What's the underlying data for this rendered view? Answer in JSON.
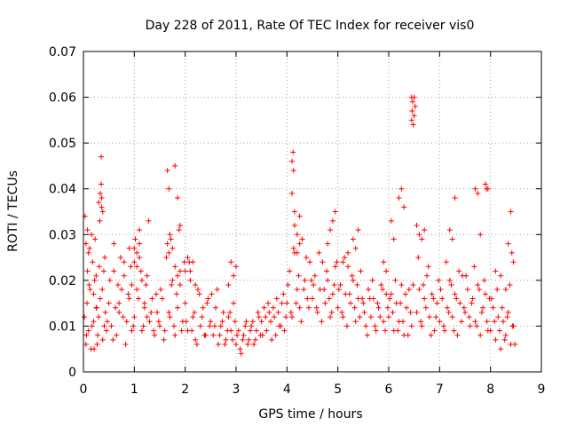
{
  "chart_data": {
    "type": "scatter",
    "title": "Day 228 of 2011, Rate Of TEC Index for receiver vis0",
    "xlabel": "GPS time / hours",
    "ylabel": "ROTI / TECUs",
    "xlim": [
      0,
      9
    ],
    "ylim": [
      0,
      0.07
    ],
    "xticks": [
      "0",
      "1",
      "2",
      "3",
      "4",
      "5",
      "6",
      "7",
      "8",
      "9"
    ],
    "yticks": [
      "0",
      "0.01",
      "0.02",
      "0.03",
      "0.04",
      "0.05",
      "0.06",
      "0.07"
    ],
    "grid": true,
    "marker": "+",
    "color": "#ff0000",
    "series": [
      {
        "x": [
          0.02,
          0.05,
          0.08,
          0.1,
          0.13,
          0.15,
          0.18,
          0.2,
          0.23,
          0.25,
          0.28,
          0.3,
          0.33,
          0.35,
          0.38,
          0.4,
          0.43,
          0.45,
          0.03,
          0.07,
          0.12,
          0.17,
          0.22,
          0.27,
          0.32,
          0.37,
          0.42,
          0.47,
          0.06,
          0.11,
          0.16,
          0.21,
          0.26,
          0.31,
          0.36,
          0.41,
          0.35,
          0.36,
          0.38,
          0.33,
          0.05,
          0.08,
          0.1,
          0.2,
          0.25,
          0.3,
          0.5,
          0.55,
          0.6,
          0.65,
          0.7,
          0.75,
          0.8,
          0.85,
          0.9,
          0.95,
          0.52,
          0.58,
          0.63,
          0.68,
          0.73,
          0.78,
          0.83,
          0.88,
          0.93,
          0.98,
          0.6,
          0.7,
          0.8,
          0.9,
          1.0,
          1.05,
          1.1,
          1.15,
          1.2,
          1.25,
          1.3,
          1.35,
          1.4,
          1.45,
          1.02,
          1.08,
          1.13,
          1.18,
          1.23,
          1.28,
          1.33,
          1.38,
          1.43,
          1.48,
          1.0,
          1.05,
          1.1,
          1.15,
          0.95,
          1.0,
          1.05,
          1.1,
          1.2,
          1.25,
          1.5,
          1.55,
          1.6,
          1.65,
          1.7,
          1.75,
          1.8,
          1.85,
          1.9,
          1.95,
          1.52,
          1.58,
          1.63,
          1.68,
          1.73,
          1.78,
          1.83,
          1.88,
          1.93,
          1.98,
          1.65,
          1.68,
          1.72,
          1.75,
          1.8,
          1.85,
          1.9,
          1.68,
          1.7,
          1.8,
          1.85,
          1.9,
          2.0,
          2.05,
          2.1,
          2.15,
          2.2,
          2.25,
          2.3,
          2.35,
          2.4,
          2.45,
          2.02,
          2.08,
          2.13,
          2.18,
          2.23,
          2.28,
          2.33,
          2.38,
          2.43,
          2.48,
          2.0,
          2.05,
          2.1,
          2.15,
          2.2,
          2.5,
          2.55,
          2.6,
          2.65,
          2.7,
          2.75,
          2.8,
          2.85,
          2.9,
          2.95,
          2.52,
          2.58,
          2.63,
          2.68,
          2.73,
          2.78,
          2.83,
          2.88,
          2.93,
          2.98,
          2.9,
          2.95,
          3.0,
          2.85,
          3.0,
          3.05,
          3.1,
          3.15,
          3.2,
          3.25,
          3.3,
          3.35,
          3.4,
          3.45,
          3.02,
          3.08,
          3.13,
          3.18,
          3.23,
          3.28,
          3.33,
          3.38,
          3.43,
          3.48,
          3.5,
          3.55,
          3.6,
          3.65,
          3.7,
          3.75,
          3.8,
          3.85,
          3.9,
          3.95,
          3.52,
          3.58,
          3.63,
          3.68,
          3.73,
          3.78,
          3.83,
          3.88,
          3.93,
          3.98,
          4.0,
          4.05,
          4.1,
          4.15,
          4.2,
          4.25,
          4.3,
          4.35,
          4.4,
          4.45,
          4.02,
          4.08,
          4.13,
          4.18,
          4.23,
          4.28,
          4.33,
          4.38,
          4.43,
          4.48,
          4.1,
          4.12,
          4.13,
          4.15,
          4.2,
          4.25,
          4.3,
          4.1,
          4.15,
          4.2,
          4.25,
          4.5,
          4.55,
          4.6,
          4.65,
          4.7,
          4.75,
          4.8,
          4.85,
          4.9,
          4.95,
          4.52,
          4.58,
          4.63,
          4.68,
          4.73,
          4.78,
          4.83,
          4.88,
          4.93,
          4.98,
          4.8,
          4.85,
          4.9,
          4.95,
          5.0,
          5.05,
          5.1,
          5.15,
          5.2,
          5.25,
          5.3,
          5.35,
          5.4,
          5.45,
          5.02,
          5.08,
          5.13,
          5.18,
          5.23,
          5.28,
          5.33,
          5.38,
          5.43,
          5.48,
          5.3,
          5.35,
          5.4,
          5.1,
          5.2,
          5.5,
          5.55,
          5.6,
          5.65,
          5.7,
          5.75,
          5.8,
          5.85,
          5.9,
          5.95,
          5.52,
          5.58,
          5.63,
          5.68,
          5.73,
          5.78,
          5.83,
          5.88,
          5.93,
          5.98,
          5.9,
          5.95,
          6.0,
          6.05,
          6.1,
          6.15,
          6.2,
          6.25,
          6.3,
          6.35,
          6.4,
          6.45,
          6.02,
          6.08,
          6.13,
          6.18,
          6.23,
          6.28,
          6.33,
          6.38,
          6.43,
          6.48,
          6.2,
          6.25,
          6.3,
          6.05,
          6.1,
          6.45,
          6.47,
          6.5,
          6.52,
          6.46,
          6.48,
          6.5,
          6.45,
          6.55,
          6.6,
          6.65,
          6.7,
          6.75,
          6.8,
          6.85,
          6.9,
          6.95,
          6.58,
          6.63,
          6.68,
          6.73,
          6.78,
          6.83,
          6.88,
          6.93,
          6.98,
          6.55,
          6.6,
          6.65,
          6.7,
          7.0,
          7.05,
          7.1,
          7.15,
          7.2,
          7.25,
          7.3,
          7.35,
          7.4,
          7.45,
          7.02,
          7.08,
          7.13,
          7.18,
          7.23,
          7.28,
          7.33,
          7.38,
          7.43,
          7.48,
          7.2,
          7.25,
          7.3,
          7.5,
          7.55,
          7.6,
          7.65,
          7.7,
          7.75,
          7.8,
          7.85,
          7.9,
          7.95,
          7.52,
          7.58,
          7.63,
          7.68,
          7.73,
          7.78,
          7.83,
          7.88,
          7.93,
          7.98,
          7.7,
          7.75,
          7.9,
          7.92,
          7.95,
          7.8,
          8.0,
          8.05,
          8.1,
          8.15,
          8.2,
          8.25,
          8.3,
          8.35,
          8.4,
          8.45,
          8.02,
          8.08,
          8.13,
          8.18,
          8.23,
          8.28,
          8.33,
          8.38,
          8.43,
          8.48,
          8.4,
          8.42,
          8.45,
          8.35,
          8.1,
          8.2,
          8.3
        ],
        "y": [
          0.012,
          0.006,
          0.031,
          0.009,
          0.018,
          0.005,
          0.024,
          0.011,
          0.029,
          0.014,
          0.008,
          0.037,
          0.016,
          0.041,
          0.007,
          0.022,
          0.013,
          0.009,
          0.034,
          0.015,
          0.027,
          0.01,
          0.02,
          0.006,
          0.033,
          0.018,
          0.025,
          0.011,
          0.008,
          0.019,
          0.03,
          0.005,
          0.014,
          0.023,
          0.036,
          0.01,
          0.047,
          0.038,
          0.035,
          0.039,
          0.028,
          0.022,
          0.026,
          0.017,
          0.021,
          0.012,
          0.015,
          0.01,
          0.022,
          0.008,
          0.013,
          0.018,
          0.024,
          0.011,
          0.016,
          0.009,
          0.02,
          0.007,
          0.014,
          0.019,
          0.025,
          0.012,
          0.006,
          0.017,
          0.023,
          0.01,
          0.028,
          0.015,
          0.021,
          0.027,
          0.012,
          0.018,
          0.025,
          0.009,
          0.014,
          0.021,
          0.011,
          0.016,
          0.008,
          0.013,
          0.029,
          0.016,
          0.022,
          0.01,
          0.019,
          0.033,
          0.013,
          0.009,
          0.017,
          0.011,
          0.027,
          0.023,
          0.031,
          0.02,
          0.019,
          0.024,
          0.026,
          0.028,
          0.015,
          0.012,
          0.01,
          0.016,
          0.009,
          0.028,
          0.012,
          0.02,
          0.008,
          0.014,
          0.022,
          0.011,
          0.018,
          0.007,
          0.025,
          0.013,
          0.019,
          0.01,
          0.017,
          0.031,
          0.009,
          0.024,
          0.044,
          0.04,
          0.029,
          0.027,
          0.045,
          0.038,
          0.032,
          0.026,
          0.03,
          0.023,
          0.021,
          0.019,
          0.015,
          0.009,
          0.022,
          0.012,
          0.007,
          0.018,
          0.01,
          0.014,
          0.008,
          0.016,
          0.011,
          0.024,
          0.009,
          0.013,
          0.006,
          0.017,
          0.012,
          0.008,
          0.015,
          0.01,
          0.022,
          0.025,
          0.02,
          0.024,
          0.019,
          0.011,
          0.008,
          0.014,
          0.006,
          0.01,
          0.013,
          0.007,
          0.012,
          0.009,
          0.015,
          0.017,
          0.01,
          0.018,
          0.008,
          0.011,
          0.006,
          0.009,
          0.013,
          0.007,
          0.011,
          0.024,
          0.021,
          0.023,
          0.019,
          0.006,
          0.009,
          0.004,
          0.008,
          0.011,
          0.007,
          0.01,
          0.006,
          0.009,
          0.012,
          0.008,
          0.005,
          0.007,
          0.01,
          0.006,
          0.009,
          0.011,
          0.007,
          0.013,
          0.008,
          0.011,
          0.014,
          0.009,
          0.013,
          0.007,
          0.012,
          0.016,
          0.01,
          0.015,
          0.009,
          0.008,
          0.012,
          0.015,
          0.011,
          0.014,
          0.008,
          0.013,
          0.01,
          0.017,
          0.012,
          0.015,
          0.022,
          0.012,
          0.026,
          0.018,
          0.014,
          0.029,
          0.02,
          0.016,
          0.024,
          0.019,
          0.013,
          0.027,
          0.015,
          0.021,
          0.011,
          0.018,
          0.025,
          0.014,
          0.02,
          0.046,
          0.048,
          0.044,
          0.035,
          0.03,
          0.034,
          0.029,
          0.039,
          0.032,
          0.026,
          0.028,
          0.016,
          0.021,
          0.013,
          0.018,
          0.024,
          0.015,
          0.02,
          0.012,
          0.017,
          0.023,
          0.019,
          0.014,
          0.026,
          0.011,
          0.018,
          0.022,
          0.016,
          0.013,
          0.019,
          0.024,
          0.028,
          0.031,
          0.033,
          0.035,
          0.014,
          0.019,
          0.012,
          0.017,
          0.023,
          0.015,
          0.02,
          0.011,
          0.016,
          0.022,
          0.018,
          0.013,
          0.025,
          0.01,
          0.017,
          0.021,
          0.014,
          0.019,
          0.012,
          0.016,
          0.029,
          0.027,
          0.031,
          0.024,
          0.026,
          0.015,
          0.01,
          0.018,
          0.012,
          0.016,
          0.009,
          0.014,
          0.019,
          0.011,
          0.017,
          0.013,
          0.008,
          0.016,
          0.02,
          0.01,
          0.015,
          0.012,
          0.018,
          0.009,
          0.014,
          0.024,
          0.022,
          0.012,
          0.017,
          0.009,
          0.015,
          0.011,
          0.019,
          0.008,
          0.014,
          0.018,
          0.01,
          0.016,
          0.013,
          0.02,
          0.009,
          0.015,
          0.011,
          0.017,
          0.008,
          0.013,
          0.019,
          0.038,
          0.04,
          0.036,
          0.033,
          0.029,
          0.06,
          0.059,
          0.06,
          0.058,
          0.057,
          0.054,
          0.056,
          0.055,
          0.013,
          0.018,
          0.01,
          0.016,
          0.021,
          0.012,
          0.017,
          0.009,
          0.015,
          0.025,
          0.011,
          0.019,
          0.014,
          0.023,
          0.008,
          0.016,
          0.012,
          0.02,
          0.032,
          0.03,
          0.029,
          0.031,
          0.011,
          0.016,
          0.009,
          0.014,
          0.02,
          0.012,
          0.017,
          0.008,
          0.015,
          0.021,
          0.018,
          0.01,
          0.024,
          0.013,
          0.019,
          0.009,
          0.016,
          0.022,
          0.011,
          0.014,
          0.031,
          0.029,
          0.038,
          0.013,
          0.018,
          0.01,
          0.016,
          0.011,
          0.019,
          0.008,
          0.014,
          0.017,
          0.009,
          0.021,
          0.012,
          0.015,
          0.023,
          0.01,
          0.018,
          0.013,
          0.02,
          0.011,
          0.016,
          0.04,
          0.039,
          0.041,
          0.04,
          0.04,
          0.03,
          0.009,
          0.014,
          0.007,
          0.012,
          0.005,
          0.011,
          0.008,
          0.013,
          0.006,
          0.01,
          0.016,
          0.011,
          0.018,
          0.009,
          0.014,
          0.007,
          0.012,
          0.019,
          0.01,
          0.006,
          0.035,
          0.026,
          0.024,
          0.028,
          0.022,
          0.021,
          0.018
        ]
      }
    ]
  }
}
